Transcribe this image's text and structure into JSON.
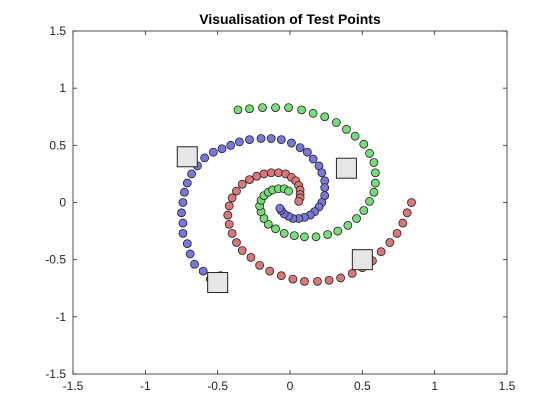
{
  "chart_data": {
    "type": "scatter",
    "title": "Visualisation of Test Points",
    "xlabel": "",
    "ylabel": "",
    "xlim": [
      -1.5,
      1.5
    ],
    "ylim": [
      -1.5,
      1.5
    ],
    "xticks": [
      -1.5,
      -1,
      -0.5,
      0,
      0.5,
      1,
      1.5
    ],
    "yticks": [
      -1.5,
      -1,
      -0.5,
      0,
      0.5,
      1,
      1.5
    ],
    "xtick_labels": [
      "-1.5",
      "-1",
      "-0.5",
      "0",
      "0.5",
      "1",
      "1.5"
    ],
    "ytick_labels": [
      "-1.5",
      "-1",
      "-0.5",
      "0",
      "0.5",
      "1",
      "1.5"
    ],
    "grid": false,
    "legend": "none",
    "series": [
      {
        "marker": "circle",
        "color": "#7777dd",
        "points": [
          [
            -0.48,
            -0.64
          ],
          [
            -0.55,
            -0.67
          ],
          [
            -0.6,
            -0.6
          ],
          [
            -0.66,
            -0.54
          ],
          [
            -0.69,
            -0.45
          ],
          [
            -0.71,
            -0.36
          ],
          [
            -0.74,
            -0.27
          ],
          [
            -0.74,
            -0.18
          ],
          [
            -0.75,
            -0.09
          ],
          [
            -0.74,
            0.0
          ],
          [
            -0.73,
            0.09
          ],
          [
            -0.71,
            0.17
          ],
          [
            -0.68,
            0.25
          ],
          [
            -0.64,
            0.32
          ],
          [
            -0.59,
            0.39
          ],
          [
            -0.53,
            0.44
          ],
          [
            -0.47,
            0.47
          ],
          [
            -0.41,
            0.5
          ],
          [
            -0.35,
            0.53
          ],
          [
            -0.28,
            0.55
          ],
          [
            -0.2,
            0.56
          ],
          [
            -0.13,
            0.56
          ],
          [
            -0.06,
            0.55
          ],
          [
            0.01,
            0.52
          ],
          [
            0.07,
            0.48
          ],
          [
            0.12,
            0.44
          ],
          [
            0.16,
            0.38
          ],
          [
            0.2,
            0.32
          ],
          [
            0.22,
            0.26
          ],
          [
            0.24,
            0.19
          ],
          [
            0.24,
            0.13
          ],
          [
            0.24,
            0.06
          ],
          [
            0.22,
            0.0
          ],
          [
            0.2,
            -0.04
          ],
          [
            0.17,
            -0.08
          ],
          [
            0.14,
            -0.11
          ],
          [
            0.1,
            -0.13
          ],
          [
            0.06,
            -0.14
          ],
          [
            0.02,
            -0.14
          ],
          [
            -0.01,
            -0.12
          ],
          [
            -0.04,
            -0.1
          ],
          [
            -0.06,
            -0.07
          ],
          [
            -0.07,
            -0.05
          ]
        ]
      },
      {
        "marker": "circle",
        "color": "#dd7777",
        "points": [
          [
            0.84,
            0.0
          ],
          [
            0.81,
            -0.09
          ],
          [
            0.78,
            -0.18
          ],
          [
            0.74,
            -0.27
          ],
          [
            0.69,
            -0.35
          ],
          [
            0.63,
            -0.43
          ],
          [
            0.57,
            -0.51
          ],
          [
            0.5,
            -0.57
          ],
          [
            0.43,
            -0.62
          ],
          [
            0.35,
            -0.66
          ],
          [
            0.27,
            -0.68
          ],
          [
            0.19,
            -0.69
          ],
          [
            0.1,
            -0.69
          ],
          [
            0.02,
            -0.67
          ],
          [
            -0.06,
            -0.64
          ],
          [
            -0.14,
            -0.6
          ],
          [
            -0.21,
            -0.55
          ],
          [
            -0.27,
            -0.48
          ],
          [
            -0.33,
            -0.42
          ],
          [
            -0.37,
            -0.35
          ],
          [
            -0.4,
            -0.27
          ],
          [
            -0.42,
            -0.19
          ],
          [
            -0.43,
            -0.11
          ],
          [
            -0.42,
            -0.03
          ],
          [
            -0.4,
            0.04
          ],
          [
            -0.37,
            0.1
          ],
          [
            -0.33,
            0.16
          ],
          [
            -0.28,
            0.2
          ],
          [
            -0.23,
            0.23
          ],
          [
            -0.18,
            0.25
          ],
          [
            -0.13,
            0.26
          ],
          [
            -0.08,
            0.26
          ],
          [
            -0.03,
            0.25
          ],
          [
            0.01,
            0.22
          ],
          [
            0.04,
            0.19
          ],
          [
            0.06,
            0.15
          ],
          [
            0.07,
            0.11
          ],
          [
            0.07,
            0.07
          ],
          [
            0.07,
            0.04
          ],
          [
            0.06,
            0.01
          ]
        ]
      },
      {
        "marker": "circle",
        "color": "#77dd77",
        "points": [
          [
            -0.36,
            0.81
          ],
          [
            -0.28,
            0.82
          ],
          [
            -0.19,
            0.83
          ],
          [
            -0.1,
            0.83
          ],
          [
            -0.01,
            0.83
          ],
          [
            0.08,
            0.81
          ],
          [
            0.16,
            0.78
          ],
          [
            0.24,
            0.75
          ],
          [
            0.32,
            0.7
          ],
          [
            0.39,
            0.64
          ],
          [
            0.45,
            0.58
          ],
          [
            0.51,
            0.51
          ],
          [
            0.55,
            0.43
          ],
          [
            0.58,
            0.35
          ],
          [
            0.59,
            0.26
          ],
          [
            0.59,
            0.17
          ],
          [
            0.58,
            0.09
          ],
          [
            0.55,
            0.01
          ],
          [
            0.51,
            -0.07
          ],
          [
            0.46,
            -0.14
          ],
          [
            0.4,
            -0.2
          ],
          [
            0.33,
            -0.25
          ],
          [
            0.26,
            -0.28
          ],
          [
            0.18,
            -0.3
          ],
          [
            0.1,
            -0.3
          ],
          [
            0.03,
            -0.29
          ],
          [
            -0.04,
            -0.27
          ],
          [
            -0.1,
            -0.23
          ],
          [
            -0.15,
            -0.19
          ],
          [
            -0.18,
            -0.14
          ],
          [
            -0.2,
            -0.08
          ],
          [
            -0.21,
            -0.03
          ],
          [
            -0.2,
            0.02
          ],
          [
            -0.18,
            0.06
          ],
          [
            -0.15,
            0.09
          ],
          [
            -0.12,
            0.11
          ],
          [
            -0.08,
            0.12
          ],
          [
            -0.04,
            0.12
          ],
          [
            -0.01,
            0.1
          ]
        ]
      },
      {
        "marker": "square",
        "color": "#e6e6e6",
        "points": [
          [
            -0.71,
            0.4
          ],
          [
            0.39,
            0.3
          ],
          [
            -0.5,
            -0.7
          ],
          [
            0.5,
            -0.5
          ]
        ]
      }
    ]
  }
}
